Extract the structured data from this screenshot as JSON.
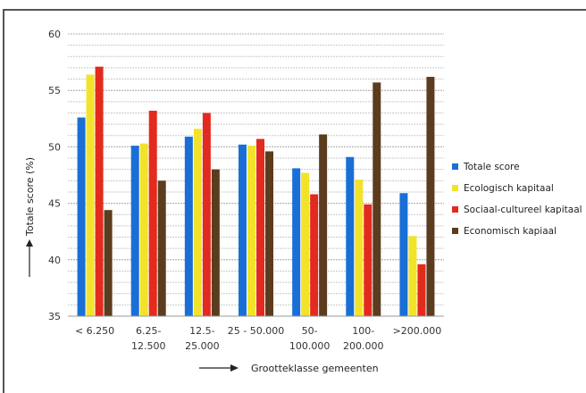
{
  "chart_data": {
    "type": "bar",
    "title": "",
    "ylabel": "Totale score (%)",
    "xlabel": "Grootteklasse gemeenten",
    "ylim": [
      35,
      60
    ],
    "yticks": [
      35,
      40,
      45,
      50,
      55,
      60
    ],
    "grid": true,
    "legend_position": "right",
    "categories": [
      [
        "< 6.250"
      ],
      [
        "6.25-",
        "12.500"
      ],
      [
        "12.5-",
        "25.000"
      ],
      [
        "25 - 50.000"
      ],
      [
        "50-",
        "100.000"
      ],
      [
        "100-",
        "200.000"
      ],
      [
        ">200.000"
      ]
    ],
    "series": [
      {
        "name": "Totale score",
        "color": "#1a6fd6",
        "values": [
          52.6,
          50.1,
          50.9,
          50.2,
          48.1,
          49.1,
          45.9
        ]
      },
      {
        "name": "Ecologisch kapitaal",
        "color": "#f2e32a",
        "values": [
          56.4,
          50.3,
          51.6,
          50.1,
          47.7,
          47.1,
          42.1
        ]
      },
      {
        "name": "Sociaal-cultureel kapitaal",
        "color": "#e32a1e",
        "values": [
          57.1,
          53.2,
          53.0,
          50.7,
          45.8,
          44.9,
          39.6
        ]
      },
      {
        "name": "Economisch kapiaal",
        "color": "#5b3c1e",
        "values": [
          44.4,
          47.0,
          48.0,
          49.6,
          51.1,
          55.7,
          56.2
        ]
      }
    ]
  }
}
